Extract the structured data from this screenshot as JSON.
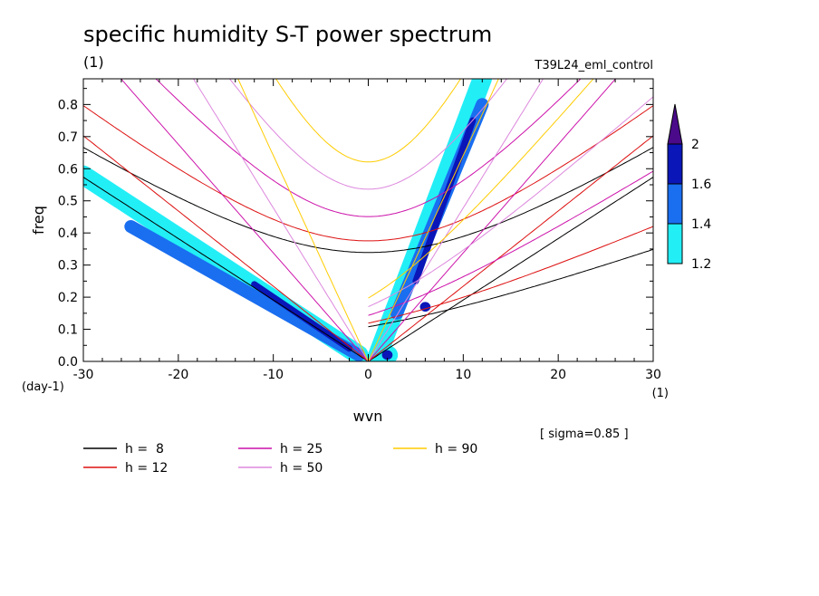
{
  "chart_data": {
    "type": "contour",
    "title": "specific humidity S-T power spectrum",
    "units_label": "(1)",
    "run_label": "T39L24_eml_control",
    "xlabel": "wvn",
    "ylabel": "freq",
    "x_units": "(1)",
    "y_units": "(day-1)",
    "xlim": [
      -30,
      30
    ],
    "ylim": [
      0,
      0.88
    ],
    "x_ticks": [
      -30,
      -20,
      -10,
      0,
      10,
      20,
      30
    ],
    "x_tick_labels": [
      "-30",
      "-20",
      "-10",
      "0",
      "10",
      "20",
      "30"
    ],
    "y_ticks": [
      0,
      0.1,
      0.2,
      0.3,
      0.4,
      0.5,
      0.6,
      0.7,
      0.8
    ],
    "y_tick_labels": [
      "0.0",
      "0.1",
      "0.2",
      "0.3",
      "0.4",
      "0.5",
      "0.6",
      "0.7",
      "0.8"
    ],
    "sigma_note": "[ sigma=0.85 ]",
    "colorbar": {
      "levels": [
        1.2,
        1.4,
        1.6,
        2
      ],
      "labels": [
        "1.2",
        "1.4",
        "1.6",
        "2"
      ],
      "colors": [
        "#22eef6",
        "#1a6ef0",
        "#0a16b8",
        "#4a0a8a"
      ]
    },
    "dispersion_curves": [
      {
        "h": 8,
        "label": "h =  8",
        "color": "#000000"
      },
      {
        "h": 12,
        "label": "h = 12",
        "color": "#dd1111"
      },
      {
        "h": 25,
        "label": "h = 25",
        "color": "#cc11aa"
      },
      {
        "h": 50,
        "label": "h = 50",
        "color": "#dd88dd"
      },
      {
        "h": 90,
        "label": "h = 90",
        "color": "#ffcc00"
      }
    ],
    "shaded_regions": [
      {
        "level": 1.2,
        "shape": "band",
        "from": [
          -30,
          0.58
        ],
        "to": [
          -1,
          0.02
        ],
        "width": 0.06
      },
      {
        "level": 1.4,
        "shape": "band",
        "from": [
          -25,
          0.42
        ],
        "to": [
          -1,
          0.02
        ],
        "width": 0.04
      },
      {
        "level": 1.6,
        "shape": "band",
        "from": [
          -12,
          0.24
        ],
        "to": [
          -2,
          0.04
        ],
        "width": 0.02
      },
      {
        "level": 1.2,
        "shape": "band",
        "from": [
          1,
          0.02
        ],
        "to": [
          12,
          0.88
        ],
        "width": 0.06
      },
      {
        "level": 1.4,
        "shape": "band",
        "from": [
          3,
          0.15
        ],
        "to": [
          12,
          0.8
        ],
        "width": 0.04
      },
      {
        "level": 1.6,
        "shape": "band",
        "from": [
          5,
          0.25
        ],
        "to": [
          11,
          0.75
        ],
        "width": 0.02
      },
      {
        "level": 1.2,
        "shape": "spot",
        "x": 2,
        "y": 0.02,
        "r": 0.03
      },
      {
        "level": 1.6,
        "shape": "spot",
        "x": 2,
        "y": 0.02,
        "r": 0.015
      },
      {
        "level": 1.6,
        "shape": "spot",
        "x": 6,
        "y": 0.17,
        "r": 0.015
      }
    ]
  }
}
